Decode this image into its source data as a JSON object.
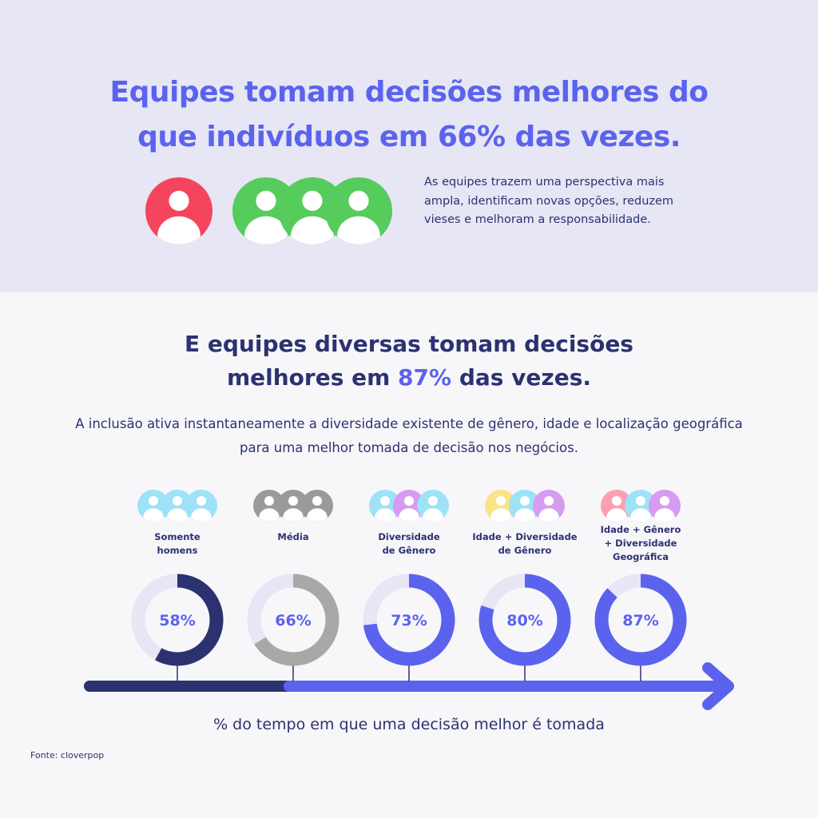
{
  "hero": {
    "title_line1": "Equipes tomam decisões melhores do",
    "title_line2": "que indivíduos em 66% das vezes.",
    "description": "As equipes trazem uma perspectiva mais ampla, identificam novas opções, reduzem vieses e melhoram a responsabilidade.",
    "individual_color": "#f5455c",
    "team_color": "#55cc5b"
  },
  "section": {
    "title_line1": "E equipes diversas tomam decisões",
    "title_line2_pre": "melhores em ",
    "title_line2_highlight": "87%",
    "title_line2_post": " das vezes.",
    "intro": "A inclusão ativa instantaneamente a diversidade existente de gênero, idade e localização geográfica para uma melhor tomada de decisão nos negócios."
  },
  "chart_data": {
    "type": "donut",
    "title": "",
    "xlabel": "% do tempo em que uma decisão melhor é tomada",
    "categories": [
      "Somente homens",
      "Média",
      "Diversidade de Gênero",
      "Idade + Diversidade de Gênero",
      "Idade + Gênero + Diversidade Geográfica"
    ],
    "category_lines": [
      [
        "Somente",
        "homens"
      ],
      [
        "Média"
      ],
      [
        "Diversidade",
        "de Gênero"
      ],
      [
        "Idade + Diversidade",
        "de Gênero"
      ],
      [
        "Idade + Gênero",
        "+ Diversidade",
        "Geográfica"
      ]
    ],
    "values": [
      58,
      66,
      73,
      80,
      87
    ],
    "value_labels": [
      "58%",
      "66%",
      "73%",
      "80%",
      "87%"
    ],
    "ylim": [
      0,
      100
    ],
    "ring_colors": [
      "#2c3270",
      "#a8a8a8",
      "#5b63ee",
      "#5b63ee",
      "#5b63ee"
    ],
    "track_color": "#e6e6f5",
    "group_icon_colors": [
      [
        "#9ee2f7",
        "#9ee2f7",
        "#9ee2f7"
      ],
      [
        "#9a9a9a",
        "#9a9a9a",
        "#9a9a9a"
      ],
      [
        "#9ee2f7",
        "#d79bf0",
        "#9ee2f7"
      ],
      [
        "#fbe38a",
        "#9ee2f7",
        "#d79bf0"
      ],
      [
        "#fca0b1",
        "#9ee2f7",
        "#d79bf0"
      ]
    ],
    "axis_colors": {
      "start": "#2c3270",
      "end": "#5b63ee"
    }
  },
  "footer": {
    "source": "Fonte: cloverpop"
  }
}
